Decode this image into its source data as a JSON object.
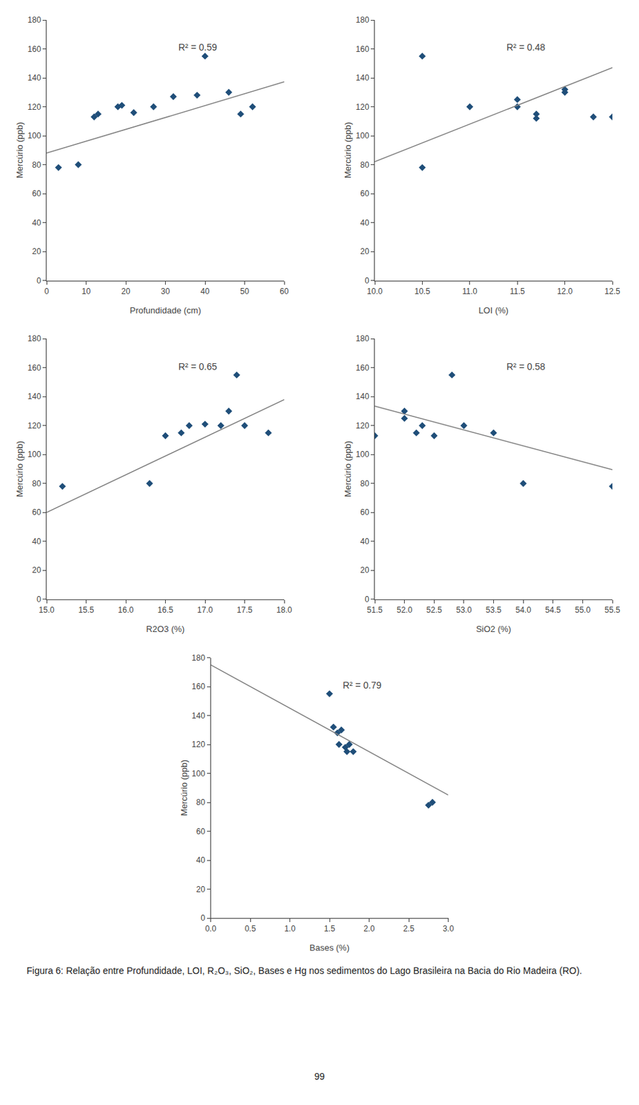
{
  "chart_data": [
    {
      "type": "scatter",
      "xlabel": "Profundidade (cm)",
      "ylabel": "Mercúrio (ppb)",
      "annotation": "R² = 0.59",
      "xlim": [
        0,
        60
      ],
      "ylim": [
        0,
        180
      ],
      "xticks": [
        0,
        10,
        20,
        30,
        40,
        50,
        60
      ],
      "yticks": [
        0,
        20,
        40,
        60,
        80,
        100,
        120,
        140,
        160,
        180
      ],
      "grid": false,
      "series": [
        {
          "type": "scatter",
          "marker": "diamond",
          "color": "#1F4E79",
          "x": [
            3,
            8,
            12,
            13,
            18,
            19,
            22,
            27,
            32,
            38,
            40,
            46,
            49,
            52
          ],
          "values": [
            78,
            80,
            113,
            115,
            120,
            121,
            116,
            120,
            127,
            128,
            155,
            130,
            115,
            120
          ]
        },
        {
          "type": "line",
          "line_style": "solid",
          "color": "#808080",
          "x": [
            0,
            60
          ],
          "values": [
            88,
            137.2
          ]
        }
      ]
    },
    {
      "type": "scatter",
      "xlabel": "LOI (%)",
      "ylabel": "Mercúrio (ppb)",
      "annotation": "R² = 0.48",
      "xlim": [
        10,
        12.5
      ],
      "ylim": [
        0,
        180
      ],
      "xticks": [
        {
          "value": 10,
          "label": "10.0"
        },
        10.5,
        {
          "value": 11,
          "label": "11.0"
        },
        11.5,
        {
          "value": 12,
          "label": "12.0"
        },
        12.5
      ],
      "yticks": [
        0,
        20,
        40,
        60,
        80,
        100,
        120,
        140,
        160,
        180
      ],
      "grid": false,
      "series": [
        {
          "type": "scatter",
          "marker": "diamond",
          "color": "#1F4E79",
          "x": [
            10.5,
            10.5,
            11.0,
            11.5,
            11.5,
            11.7,
            11.7,
            12.0,
            12.0,
            12.3,
            12.5
          ],
          "values": [
            78,
            155,
            120,
            120,
            125,
            115,
            112,
            130,
            132,
            113,
            113
          ]
        },
        {
          "type": "line",
          "line_style": "solid",
          "color": "#808080",
          "x": [
            10,
            12.5
          ],
          "values": [
            82,
            147
          ]
        }
      ]
    },
    {
      "type": "scatter",
      "xlabel": "R2O3 (%)",
      "ylabel": "Mercúrio (ppb)",
      "annotation": "R² = 0.65",
      "xlim": [
        15,
        18
      ],
      "ylim": [
        0,
        180
      ],
      "xticks": [
        {
          "value": 15,
          "label": "15.0"
        },
        15.5,
        {
          "value": 16,
          "label": "16.0"
        },
        16.5,
        {
          "value": 17,
          "label": "17.0"
        },
        17.5,
        {
          "value": 18,
          "label": "18.0"
        }
      ],
      "yticks": [
        0,
        20,
        40,
        60,
        80,
        100,
        120,
        140,
        160,
        180
      ],
      "grid": false,
      "series": [
        {
          "type": "scatter",
          "marker": "diamond",
          "color": "#1F4E79",
          "x": [
            15.2,
            16.3,
            16.5,
            16.7,
            16.8,
            17.0,
            17.2,
            17.3,
            17.4,
            17.5,
            17.8
          ],
          "values": [
            78,
            80,
            113,
            115,
            120,
            121,
            120,
            130,
            155,
            120,
            115
          ]
        },
        {
          "type": "line",
          "line_style": "solid",
          "color": "#808080",
          "x": [
            15,
            18
          ],
          "values": [
            60,
            138
          ]
        }
      ]
    },
    {
      "type": "scatter",
      "xlabel": "SiO2 (%)",
      "ylabel": "Mercúrio (ppb)",
      "annotation": "R² = 0.58",
      "xlim": [
        51.5,
        55.5
      ],
      "ylim": [
        0,
        180
      ],
      "xticks": [
        51.5,
        {
          "value": 52,
          "label": "52.0"
        },
        52.5,
        {
          "value": 53,
          "label": "53.0"
        },
        53.5,
        {
          "value": 54,
          "label": "54.0"
        },
        54.5,
        {
          "value": 55,
          "label": "55.0"
        },
        55.5
      ],
      "yticks": [
        0,
        20,
        40,
        60,
        80,
        100,
        120,
        140,
        160,
        180
      ],
      "grid": false,
      "series": [
        {
          "type": "scatter",
          "marker": "diamond",
          "color": "#1F4E79",
          "x": [
            51.5,
            52.0,
            52.0,
            52.2,
            52.3,
            52.5,
            52.8,
            53.0,
            53.5,
            54.0,
            55.5
          ],
          "values": [
            113,
            130,
            125,
            115,
            120,
            113,
            155,
            120,
            115,
            80,
            78
          ]
        },
        {
          "type": "line",
          "line_style": "solid",
          "color": "#808080",
          "x": [
            51.5,
            55.5
          ],
          "values": [
            133.5,
            89.5
          ]
        }
      ]
    },
    {
      "type": "scatter",
      "xlabel": "Bases (%)",
      "ylabel": "Mercúrio (ppb)",
      "annotation": "R² = 0.79",
      "xlim": [
        0,
        3
      ],
      "ylim": [
        0,
        180
      ],
      "xticks": [
        {
          "value": 0,
          "label": "0.0"
        },
        0.5,
        {
          "value": 1,
          "label": "1.0"
        },
        1.5,
        {
          "value": 2,
          "label": "2.0"
        },
        2.5,
        {
          "value": 3,
          "label": "3.0"
        }
      ],
      "yticks": [
        0,
        20,
        40,
        60,
        80,
        100,
        120,
        140,
        160,
        180
      ],
      "grid": false,
      "series": [
        {
          "type": "scatter",
          "marker": "diamond",
          "color": "#1F4E79",
          "x": [
            1.5,
            1.55,
            1.6,
            1.62,
            1.65,
            1.7,
            1.72,
            1.75,
            1.8,
            2.75,
            2.8
          ],
          "values": [
            155,
            132,
            128,
            120,
            130,
            118,
            115,
            120,
            115,
            78,
            80
          ]
        },
        {
          "type": "line",
          "line_style": "solid",
          "color": "#808080",
          "x": [
            0,
            3
          ],
          "values": [
            175,
            85
          ]
        }
      ]
    }
  ],
  "caption": "Figura 6: Relação entre Profundidade, LOI, R₂O₃, SiO₂, Bases e Hg nos sedimentos do Lago Brasileira na Bacia do Rio Madeira (RO).",
  "page_number": "99"
}
